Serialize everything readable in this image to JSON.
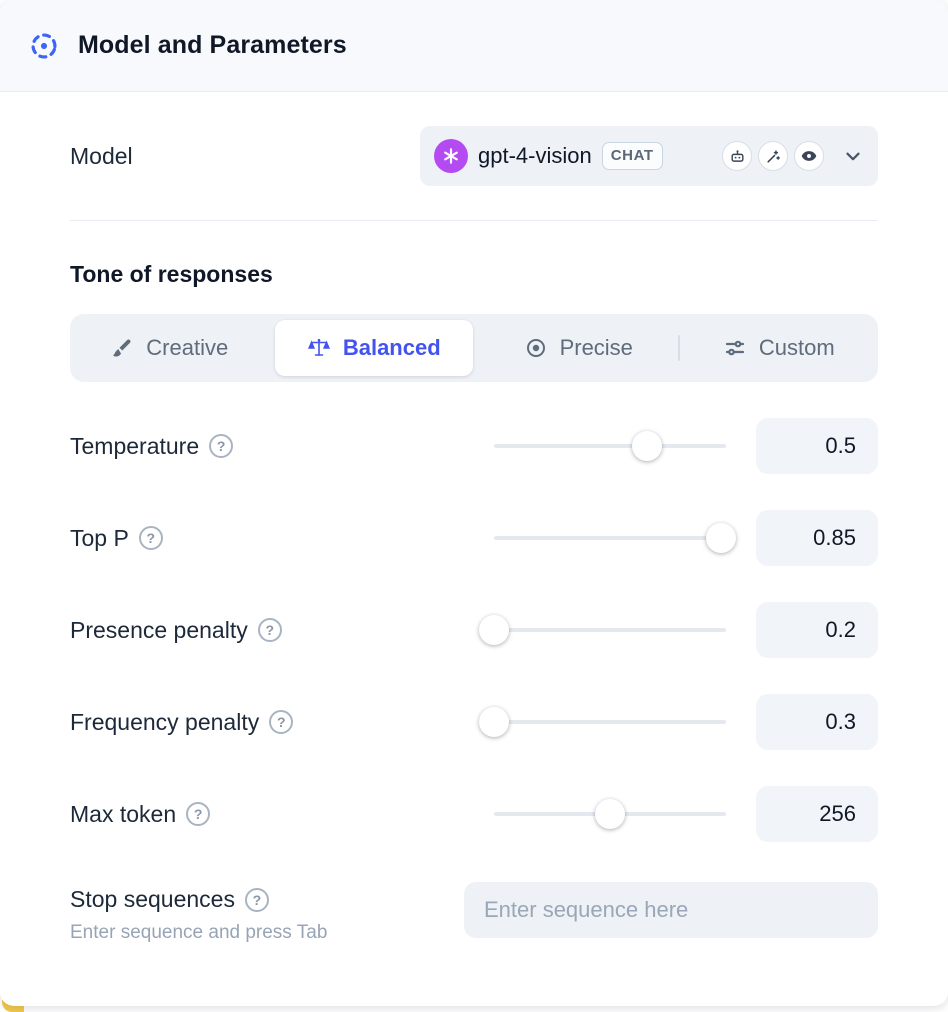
{
  "header": {
    "title": "Model and Parameters"
  },
  "model": {
    "label": "Model",
    "name": "gpt-4-vision",
    "type_badge": "CHAT",
    "capability_icons": [
      "robot-icon",
      "magic-wand-icon",
      "vision-eye-icon"
    ]
  },
  "tone": {
    "heading": "Tone of responses",
    "options": [
      {
        "label": "Creative",
        "icon": "brush-icon",
        "selected": false
      },
      {
        "label": "Balanced",
        "icon": "scales-icon",
        "selected": true
      },
      {
        "label": "Precise",
        "icon": "target-icon",
        "selected": false
      },
      {
        "label": "Custom",
        "icon": "sliders-icon",
        "selected": false
      }
    ]
  },
  "parameters": [
    {
      "label": "Temperature",
      "value": "0.5",
      "slider_percent": 66
    },
    {
      "label": "Top P",
      "value": "0.85",
      "slider_percent": 98
    },
    {
      "label": "Presence penalty",
      "value": "0.2",
      "slider_percent": 0
    },
    {
      "label": "Frequency penalty",
      "value": "0.3",
      "slider_percent": 0
    },
    {
      "label": "Max token",
      "value": "256",
      "slider_percent": 50
    }
  ],
  "stop_sequences": {
    "label": "Stop sequences",
    "hint": "Enter sequence and press Tab",
    "placeholder": "Enter sequence here"
  },
  "colors": {
    "accent_blue": "#4353f0",
    "slider_blue": "#6d8bfa",
    "header_icon_blue": "#3e63f6",
    "openai_purple": "#b44bf2",
    "panel_header_bg": "#f7f9fc",
    "control_bg": "#eef1f6",
    "value_box_bg": "#f1f4f8"
  }
}
